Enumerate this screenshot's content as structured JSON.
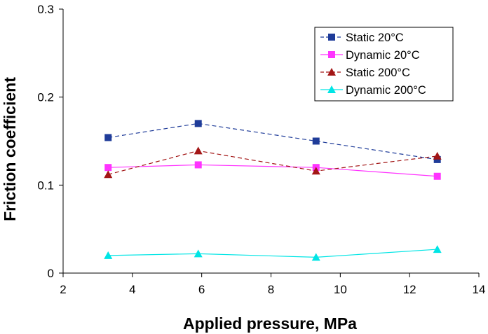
{
  "chart_data": {
    "type": "line",
    "xlabel": "Applied pressure, MPa",
    "ylabel": "Friction coefficient",
    "xlim": [
      2,
      14
    ],
    "ylim": [
      0,
      0.3
    ],
    "x_ticks": [
      "2",
      "4",
      "6",
      "8",
      "10",
      "12",
      "14"
    ],
    "y_ticks": [
      "0",
      "0.1",
      "0.2",
      "0.3"
    ],
    "grid": false,
    "legend_position": "top-right",
    "x": [
      3.3,
      5.9,
      9.3,
      12.8
    ],
    "series": [
      {
        "name": "Static 20°C",
        "values": [
          0.154,
          0.17,
          0.15,
          0.129
        ],
        "color": "#1f3c99",
        "marker": "square",
        "line": "dashed"
      },
      {
        "name": "Dynamic 20°C",
        "values": [
          0.12,
          0.123,
          0.12,
          0.11
        ],
        "color": "#ff33ff",
        "marker": "square",
        "line": "solid"
      },
      {
        "name": "Static 200°C",
        "values": [
          0.112,
          0.139,
          0.116,
          0.133
        ],
        "color": "#a31616",
        "marker": "triangle",
        "line": "dashed"
      },
      {
        "name": "Dynamic 200°C",
        "values": [
          0.02,
          0.022,
          0.018,
          0.027
        ],
        "color": "#00e5e5",
        "marker": "triangle",
        "line": "solid"
      }
    ]
  }
}
